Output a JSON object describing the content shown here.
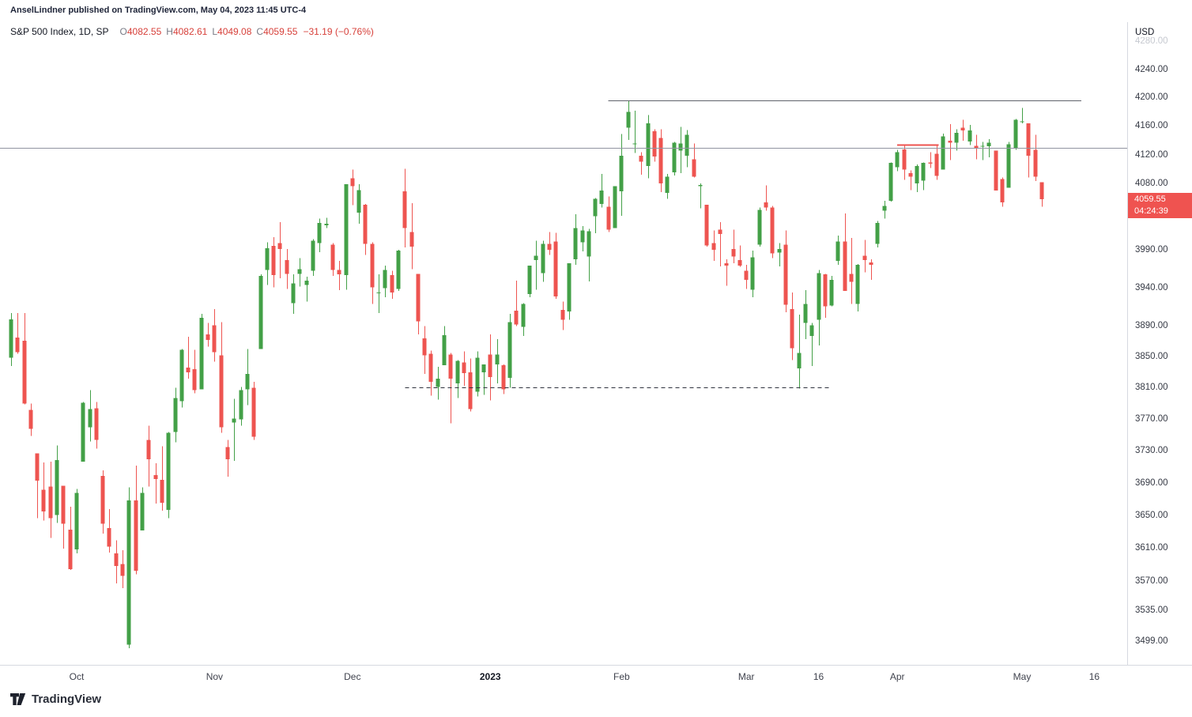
{
  "attribution": "AnselLindner published on TradingView.com, May 04, 2023 11:45 UTC-4",
  "legend": {
    "symbol_line": "S&P 500 Index, 1D, SP",
    "ohlc": [
      {
        "label": "O",
        "value": "4082.55"
      },
      {
        "label": "H",
        "value": "4082.61"
      },
      {
        "label": "L",
        "value": "4049.08"
      },
      {
        "label": "C",
        "value": "4059.55"
      }
    ],
    "change": "−31.19 (−0.76%)"
  },
  "price_axis": {
    "currency": "USD",
    "last_price": "4059.55",
    "last_price_value": 4059.55,
    "countdown": "04:24:39",
    "badge_color": "#ef5350",
    "ticks": [
      {
        "label": "4280.00",
        "value": 4280,
        "faded": true
      },
      {
        "label": "4240.00",
        "value": 4240
      },
      {
        "label": "4200.00",
        "value": 4200
      },
      {
        "label": "4160.00",
        "value": 4160
      },
      {
        "label": "4120.00",
        "value": 4120
      },
      {
        "label": "4080.00",
        "value": 4080
      },
      {
        "label": "3990.00",
        "value": 3990
      },
      {
        "label": "3940.00",
        "value": 3940
      },
      {
        "label": "3890.00",
        "value": 3890
      },
      {
        "label": "3850.00",
        "value": 3850
      },
      {
        "label": "3810.00",
        "value": 3810
      },
      {
        "label": "3770.00",
        "value": 3770
      },
      {
        "label": "3730.00",
        "value": 3730
      },
      {
        "label": "3690.00",
        "value": 3690
      },
      {
        "label": "3650.00",
        "value": 3650
      },
      {
        "label": "3610.00",
        "value": 3610
      },
      {
        "label": "3570.00",
        "value": 3570
      },
      {
        "label": "3535.00",
        "value": 3535
      },
      {
        "label": "3499.00",
        "value": 3499
      }
    ]
  },
  "time_axis": {
    "labels": [
      {
        "text": "Oct",
        "index": 10
      },
      {
        "text": "Nov",
        "index": 31
      },
      {
        "text": "Dec",
        "index": 52
      },
      {
        "text": "2023",
        "index": 73,
        "bold": true
      },
      {
        "text": "Feb",
        "index": 93
      },
      {
        "text": "Mar",
        "index": 112
      },
      {
        "text": "16",
        "index": 123
      },
      {
        "text": "Apr",
        "index": 135
      },
      {
        "text": "May",
        "index": 154
      },
      {
        "text": "16",
        "index": 165
      }
    ]
  },
  "footer": {
    "brand": "TradingView"
  },
  "chart_data": {
    "type": "candlestick",
    "symbol": "S&P 500 Index",
    "exchange": "SP",
    "interval": "1D",
    "scale": "log",
    "grid": false,
    "up_color": "#43a047",
    "down_color": "#ee5450",
    "price_range_visible": [
      3480,
      4310
    ],
    "candles": [
      [
        "2022-09-19",
        3849,
        3907,
        3838,
        3899
      ],
      [
        "2022-09-20",
        3875,
        3907,
        3854,
        3856
      ],
      [
        "2022-09-21",
        3871,
        3907,
        3789,
        3790
      ],
      [
        "2022-09-22",
        3782,
        3790,
        3749,
        3758
      ],
      [
        "2022-09-23",
        3727,
        3727,
        3647,
        3693
      ],
      [
        "2022-09-26",
        3682,
        3716,
        3644,
        3655
      ],
      [
        "2022-09-27",
        3686,
        3717,
        3623,
        3647
      ],
      [
        "2022-09-28",
        3651,
        3737,
        3641,
        3719
      ],
      [
        "2022-09-29",
        3687,
        3687,
        3610,
        3640
      ],
      [
        "2022-09-30",
        3633,
        3661,
        3584,
        3585
      ],
      [
        "2022-10-03",
        3609,
        3683,
        3604,
        3678
      ],
      [
        "2022-10-04",
        3717,
        3792,
        3717,
        3791
      ],
      [
        "2022-10-05",
        3760,
        3807,
        3742,
        3783
      ],
      [
        "2022-10-06",
        3784,
        3792,
        3733,
        3744
      ],
      [
        "2022-10-07",
        3699,
        3706,
        3628,
        3640
      ],
      [
        "2022-10-10",
        3635,
        3658,
        3605,
        3612
      ],
      [
        "2022-10-11",
        3604,
        3620,
        3568,
        3589
      ],
      [
        "2022-10-12",
        3591,
        3608,
        3562,
        3577
      ],
      [
        "2022-10-13",
        3495,
        3685,
        3491,
        3669
      ],
      [
        "2022-10-14",
        3669,
        3712,
        3579,
        3583
      ],
      [
        "2022-10-17",
        3632,
        3685,
        3632,
        3678
      ],
      [
        "2022-10-18",
        3744,
        3762,
        3686,
        3720
      ],
      [
        "2022-10-19",
        3700,
        3715,
        3665,
        3695
      ],
      [
        "2022-10-20",
        3694,
        3736,
        3656,
        3666
      ],
      [
        "2022-10-21",
        3657,
        3754,
        3647,
        3753
      ],
      [
        "2022-10-24",
        3754,
        3810,
        3741,
        3797
      ],
      [
        "2022-10-25",
        3793,
        3860,
        3785,
        3859
      ],
      [
        "2022-10-26",
        3836,
        3876,
        3822,
        3830
      ],
      [
        "2022-10-27",
        3834,
        3859,
        3803,
        3807
      ],
      [
        "2022-10-28",
        3808,
        3906,
        3808,
        3901
      ],
      [
        "2022-10-31",
        3879,
        3894,
        3863,
        3872
      ],
      [
        "2022-11-01",
        3891,
        3912,
        3844,
        3856
      ],
      [
        "2022-11-02",
        3852,
        3895,
        3753,
        3760
      ],
      [
        "2022-11-03",
        3735,
        3744,
        3698,
        3720
      ],
      [
        "2022-11-04",
        3766,
        3796,
        3718,
        3771
      ],
      [
        "2022-11-07",
        3770,
        3811,
        3762,
        3807
      ],
      [
        "2022-11-08",
        3808,
        3860,
        3788,
        3828
      ],
      [
        "2022-11-09",
        3810,
        3818,
        3744,
        3748
      ],
      [
        "2022-11-10",
        3860,
        3958,
        3860,
        3956
      ],
      [
        "2022-11-11",
        3964,
        4001,
        3944,
        3993
      ],
      [
        "2022-11-14",
        3996,
        4008,
        3941,
        3957
      ],
      [
        "2022-11-15",
        4000,
        4028,
        3953,
        3992
      ],
      [
        "2022-11-16",
        3977,
        3992,
        3939,
        3959
      ],
      [
        "2022-11-17",
        3920,
        3958,
        3906,
        3946
      ],
      [
        "2022-11-18",
        3959,
        3980,
        3942,
        3965
      ],
      [
        "2022-11-21",
        3944,
        3955,
        3922,
        3950
      ],
      [
        "2022-11-22",
        3963,
        4005,
        3956,
        4003
      ],
      [
        "2022-11-23",
        4000,
        4033,
        3988,
        4027
      ],
      [
        "2022-11-25",
        4024,
        4034,
        4020,
        4026
      ],
      [
        "2022-11-28",
        3998,
        4000,
        3956,
        3964
      ],
      [
        "2022-11-29",
        3964,
        3976,
        3937,
        3958
      ],
      [
        "2022-11-30",
        3957,
        4080,
        3938,
        4080
      ],
      [
        "2022-12-01",
        4088,
        4100,
        4051,
        4077
      ],
      [
        "2022-12-02",
        4041,
        4080,
        4026,
        4072
      ],
      [
        "2022-12-05",
        4052,
        4053,
        3984,
        3999
      ],
      [
        "2022-12-06",
        3999,
        4001,
        3919,
        3941
      ],
      [
        "2022-12-07",
        3933,
        3958,
        3907,
        3934
      ],
      [
        "2022-12-08",
        3940,
        3970,
        3928,
        3964
      ],
      [
        "2022-12-09",
        3957,
        3963,
        3926,
        3934
      ],
      [
        "2022-12-12",
        3939,
        3991,
        3936,
        3990
      ],
      [
        "2022-12-13",
        4070,
        4101,
        3994,
        4020
      ],
      [
        "2022-12-14",
        4015,
        4054,
        3965,
        3995
      ],
      [
        "2022-12-15",
        3959,
        3959,
        3879,
        3896
      ],
      [
        "2022-12-16",
        3874,
        3890,
        3828,
        3852
      ],
      [
        "2022-12-19",
        3854,
        3858,
        3800,
        3818
      ],
      [
        "2022-12-20",
        3811,
        3837,
        3795,
        3822
      ],
      [
        "2022-12-21",
        3839,
        3890,
        3839,
        3878
      ],
      [
        "2022-12-22",
        3853,
        3855,
        3765,
        3822
      ],
      [
        "2022-12-23",
        3816,
        3846,
        3797,
        3845
      ],
      [
        "2022-12-27",
        3843,
        3857,
        3813,
        3829
      ],
      [
        "2022-12-28",
        3830,
        3848,
        3780,
        3783
      ],
      [
        "2022-12-29",
        3805,
        3857,
        3799,
        3849
      ],
      [
        "2022-12-30",
        3830,
        3840,
        3801,
        3840
      ],
      [
        "2023-01-03",
        3853,
        3879,
        3794,
        3824
      ],
      [
        "2023-01-04",
        3840,
        3873,
        3816,
        3853
      ],
      [
        "2023-01-05",
        3839,
        3840,
        3802,
        3808
      ],
      [
        "2023-01-06",
        3823,
        3906,
        3810,
        3895
      ],
      [
        "2023-01-09",
        3910,
        3950,
        3890,
        3892
      ],
      [
        "2023-01-10",
        3889,
        3920,
        3877,
        3919
      ],
      [
        "2023-01-11",
        3932,
        3970,
        3928,
        3970
      ],
      [
        "2023-01-12",
        3977,
        4003,
        3938,
        3983
      ],
      [
        "2023-01-13",
        3960,
        4003,
        3948,
        3999
      ],
      [
        "2023-01-17",
        3999,
        4015,
        3984,
        3991
      ],
      [
        "2023-01-18",
        4002,
        4014,
        3926,
        3929
      ],
      [
        "2023-01-19",
        3911,
        3922,
        3885,
        3898
      ],
      [
        "2023-01-20",
        3909,
        3972,
        3898,
        3973
      ],
      [
        "2023-01-23",
        3978,
        4039,
        3971,
        4020
      ],
      [
        "2023-01-24",
        4001,
        4023,
        3989,
        4017
      ],
      [
        "2023-01-25",
        3982,
        4019,
        3949,
        4016
      ],
      [
        "2023-01-26",
        4036,
        4061,
        4013,
        4060
      ],
      [
        "2023-01-27",
        4053,
        4094,
        4048,
        4071
      ],
      [
        "2023-01-30",
        4049,
        4063,
        4015,
        4018
      ],
      [
        "2023-01-31",
        4020,
        4077,
        4020,
        4077
      ],
      [
        "2023-02-01",
        4070,
        4149,
        4037,
        4119
      ],
      [
        "2023-02-02",
        4158,
        4195,
        4141,
        4180
      ],
      [
        "2023-02-03",
        4136,
        4182,
        4123,
        4136
      ],
      [
        "2023-02-06",
        4119,
        4124,
        4093,
        4111
      ],
      [
        "2023-02-07",
        4105,
        4176,
        4088,
        4164
      ],
      [
        "2023-02-08",
        4153,
        4156,
        4111,
        4118
      ],
      [
        "2023-02-09",
        4144,
        4156,
        4069,
        4081
      ],
      [
        "2023-02-10",
        4068,
        4094,
        4060,
        4090
      ],
      [
        "2023-02-13",
        4096,
        4138,
        4092,
        4137
      ],
      [
        "2023-02-14",
        4126,
        4159,
        4095,
        4136
      ],
      [
        "2023-02-15",
        4119,
        4155,
        4103,
        4148
      ],
      [
        "2023-02-16",
        4114,
        4136,
        4089,
        4090
      ],
      [
        "2023-02-17",
        4077,
        4081,
        4047,
        4079
      ],
      [
        "2023-02-21",
        4052,
        4052,
        3995,
        3997
      ],
      [
        "2023-02-22",
        4000,
        4017,
        3976,
        3991
      ],
      [
        "2023-02-23",
        4018,
        4028,
        3969,
        4012
      ],
      [
        "2023-02-24",
        3973,
        3978,
        3943,
        3970
      ],
      [
        "2023-02-27",
        3992,
        4018,
        3973,
        3982
      ],
      [
        "2023-02-28",
        3977,
        3997,
        3968,
        3970
      ],
      [
        "2023-03-01",
        3963,
        3971,
        3939,
        3951
      ],
      [
        "2023-03-02",
        3938,
        3990,
        3928,
        3981
      ],
      [
        "2023-03-03",
        3998,
        4048,
        3995,
        4045
      ],
      [
        "2023-03-06",
        4055,
        4078,
        4044,
        4048
      ],
      [
        "2023-03-07",
        4048,
        4050,
        3980,
        3986
      ],
      [
        "2023-03-08",
        3987,
        4000,
        3969,
        3992
      ],
      [
        "2023-03-09",
        3998,
        4017,
        3908,
        3918
      ],
      [
        "2023-03-10",
        3912,
        3934,
        3846,
        3861
      ],
      [
        "2023-03-13",
        3835,
        3905,
        3809,
        3855
      ],
      [
        "2023-03-14",
        3894,
        3937,
        3873,
        3919
      ],
      [
        "2023-03-15",
        3877,
        3894,
        3838,
        3891
      ],
      [
        "2023-03-16",
        3898,
        3964,
        3865,
        3960
      ],
      [
        "2023-03-17",
        3958,
        3959,
        3901,
        3916
      ],
      [
        "2023-03-20",
        3917,
        3956,
        3916,
        3951
      ],
      [
        "2023-03-21",
        3976,
        4010,
        3971,
        4002
      ],
      [
        "2023-03-22",
        4002,
        4040,
        3936,
        3936
      ],
      [
        "2023-03-23",
        3959,
        4007,
        3919,
        3948
      ],
      [
        "2023-03-24",
        3919,
        3972,
        3909,
        3971
      ],
      [
        "2023-03-27",
        3983,
        4004,
        3961,
        3977
      ],
      [
        "2023-03-28",
        3974,
        3978,
        3951,
        3971
      ],
      [
        "2023-03-29",
        3999,
        4030,
        3994,
        4027
      ],
      [
        "2023-03-30",
        4044,
        4057,
        4033,
        4050
      ],
      [
        "2023-03-31",
        4057,
        4110,
        4056,
        4109
      ],
      [
        "2023-04-03",
        4103,
        4127,
        4098,
        4124
      ],
      [
        "2023-04-04",
        4128,
        4133,
        4086,
        4100
      ],
      [
        "2023-04-05",
        4095,
        4099,
        4072,
        4090
      ],
      [
        "2023-04-06",
        4081,
        4107,
        4069,
        4105
      ],
      [
        "2023-04-10",
        4085,
        4110,
        4072,
        4109
      ],
      [
        "2023-04-11",
        4110,
        4124,
        4102,
        4108
      ],
      [
        "2023-04-12",
        4122,
        4134,
        4086,
        4091
      ],
      [
        "2023-04-13",
        4100,
        4150,
        4100,
        4146
      ],
      [
        "2023-04-14",
        4140,
        4163,
        4113,
        4137
      ],
      [
        "2023-04-17",
        4137,
        4156,
        4126,
        4151
      ],
      [
        "2023-04-18",
        4158,
        4169,
        4140,
        4154
      ],
      [
        "2023-04-19",
        4139,
        4162,
        4134,
        4154
      ],
      [
        "2023-04-20",
        4133,
        4148,
        4114,
        4129
      ],
      [
        "2023-04-21",
        4132,
        4138,
        4113,
        4133
      ],
      [
        "2023-04-24",
        4132,
        4142,
        4117,
        4137
      ],
      [
        "2023-04-25",
        4126,
        4126,
        4071,
        4071
      ],
      [
        "2023-04-26",
        4087,
        4089,
        4049,
        4055
      ],
      [
        "2023-04-27",
        4075,
        4138,
        4075,
        4135
      ],
      [
        "2023-04-28",
        4129,
        4170,
        4127,
        4169
      ],
      [
        "2023-05-01",
        4167,
        4186,
        4164,
        4167
      ],
      [
        "2023-05-02",
        4164,
        4164,
        4089,
        4119
      ],
      [
        "2023-05-03",
        4127,
        4148,
        4084,
        4090
      ],
      [
        "2023-05-04",
        4082.55,
        4082.61,
        4049.08,
        4059.55
      ]
    ],
    "overlays": [
      {
        "name": "resistance-line-4196",
        "price": 4196,
        "from_index": 91,
        "to_index": 163,
        "color": "#60636c",
        "width": 1,
        "dashed": false
      },
      {
        "name": "level-line-4130",
        "price": 4130,
        "full_width": true,
        "color": "#9094a0",
        "width": 1,
        "dashed": false
      },
      {
        "name": "support-dashed-3811",
        "price": 3811,
        "from_index": 60,
        "to_index": 125,
        "color": "#2e323d",
        "width": 1,
        "dashed": true
      },
      {
        "name": "april-high-marker-4134",
        "price": 4134,
        "from_index": 135,
        "to_index": 141.3,
        "color": "#ee5450",
        "width": 2,
        "dashed": false
      }
    ]
  }
}
